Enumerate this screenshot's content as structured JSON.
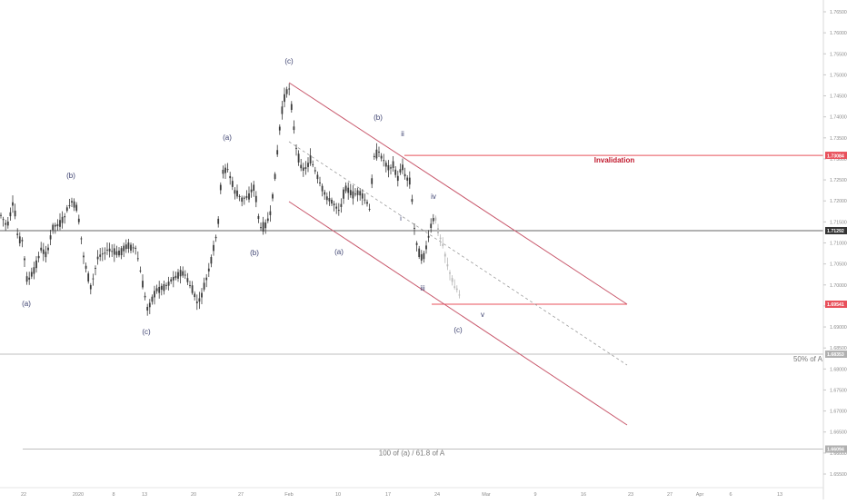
{
  "chart_data": {
    "type": "candlestick",
    "title": "",
    "colors": {
      "candle": "#3b3b3b",
      "candle_light": "#b8b8b8",
      "channel": "#c8576b",
      "invalidation": "#e8505b",
      "invalidation_text": "#c0172b",
      "wave_label": "#3a3f6e",
      "grid_line": "#bfbfbf",
      "price_line": "#333333",
      "axis_text": "#8a8a8a",
      "tag_dark": "#333333",
      "tag_red": "#e8505b",
      "tag_gray": "#b0b0b0"
    },
    "x_axis": {
      "ticks": [
        "22",
        "2020",
        "8",
        "13",
        "20",
        "27",
        "Feb",
        "10",
        "17",
        "24",
        "Mar",
        "9",
        "16",
        "23",
        "27",
        "Apr",
        "6",
        "13"
      ]
    },
    "y_axis": {
      "ylim": [
        1.6525,
        1.7665
      ],
      "ticks": [
        "1.76500",
        "1.76000",
        "1.75500",
        "1.75000",
        "1.74500",
        "1.74000",
        "1.73500",
        "1.73000",
        "1.72500",
        "1.72000",
        "1.71500",
        "1.71000",
        "1.70500",
        "1.70000",
        "1.69500",
        "1.69000",
        "1.68500",
        "1.68000",
        "1.67500",
        "1.67000",
        "1.66500",
        "1.66000",
        "1.65500"
      ]
    },
    "price_tags": [
      {
        "label": "1.73084",
        "value": 1.73084,
        "style": "red"
      },
      {
        "label": "1.71292",
        "value": 1.71292,
        "style": "dark"
      },
      {
        "label": "1.69541",
        "value": 1.69541,
        "style": "red"
      },
      {
        "label": "1.68353",
        "value": 1.68353,
        "style": "gray"
      },
      {
        "label": "1.66094",
        "value": 1.66094,
        "style": "gray"
      }
    ],
    "levels": [
      {
        "label": "Invalidation",
        "value": 1.73084
      },
      {
        "label": "50% of A",
        "value": 1.68353
      },
      {
        "label": "100 of (a) / 61.8 of A",
        "value": 1.66094
      }
    ],
    "wave_labels": [
      "(a)",
      "(b)",
      "(c)",
      "(a)",
      "(b)",
      "(c)",
      "(a)",
      "(b)",
      "ii",
      "i",
      "iii",
      "iv",
      "v",
      "(c)"
    ]
  }
}
